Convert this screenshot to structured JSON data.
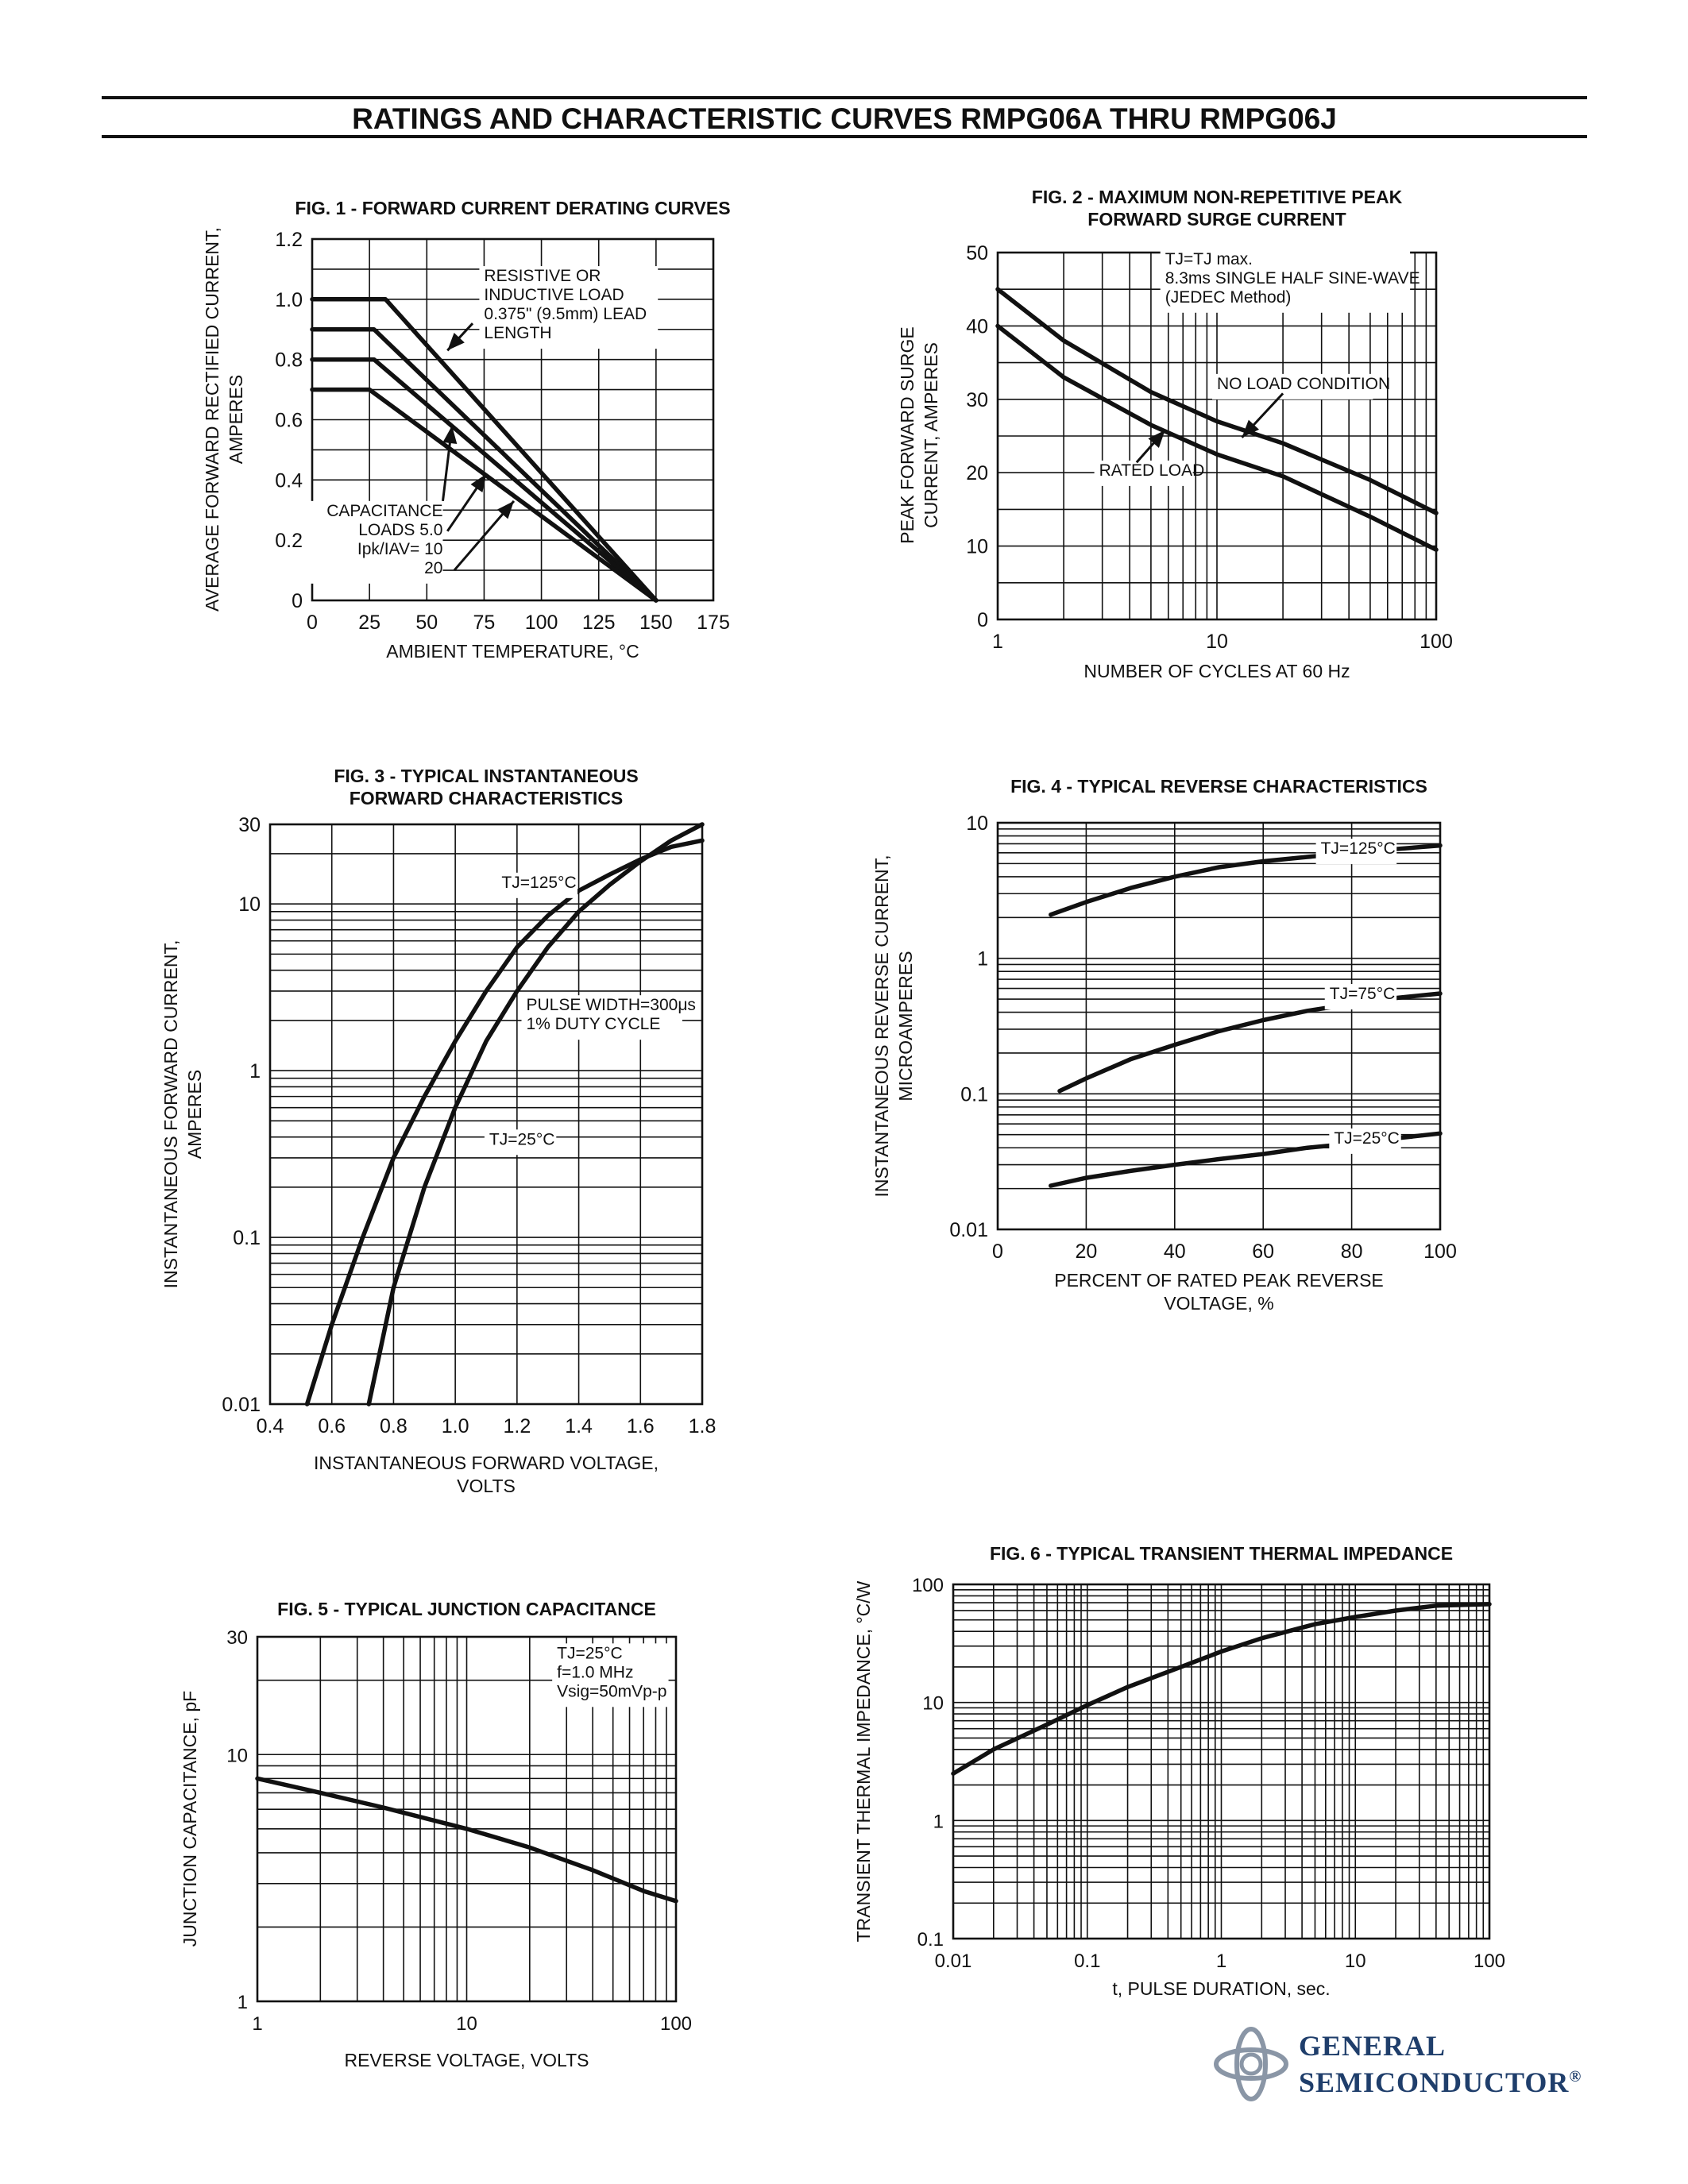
{
  "page": {
    "title": "RATINGS AND CHARACTERISTIC CURVES RMPG06A THRU RMPG06J"
  },
  "logo": {
    "line1": "GENERAL",
    "line2": "SEMICONDUCTOR",
    "mark": "®",
    "color": "#1f3e6b"
  },
  "chart_data": [
    {
      "id": "fig1",
      "type": "line",
      "title": "FIG. 1 - FORWARD CURRENT DERATING CURVES",
      "xlabel": "AMBIENT TEMPERATURE, °C",
      "ylabel": [
        "AVERAGE FORWARD RECTIFIED CURRENT,",
        "AMPERES"
      ],
      "xscale": "linear",
      "yscale": "linear",
      "xlim": [
        0,
        175
      ],
      "ylim": [
        0,
        1.2
      ],
      "xticks": [
        0,
        25,
        50,
        75,
        100,
        125,
        150,
        175
      ],
      "xtick_labels": [
        "0",
        "25",
        "50",
        "75",
        "100",
        "125",
        "150",
        "175"
      ],
      "yticks": [
        0,
        0.2,
        0.4,
        0.6,
        0.8,
        1.0,
        1.2
      ],
      "ytick_labels": [
        "0",
        "0.2",
        "0.4",
        "0.6",
        "0.8",
        "1.0",
        "1.2"
      ],
      "grid": true,
      "series": [
        {
          "points": [
            [
              0,
              1.0
            ],
            [
              32,
              1.0
            ],
            [
              150,
              0
            ]
          ]
        },
        {
          "points": [
            [
              0,
              0.9
            ],
            [
              27,
              0.9
            ],
            [
              150,
              0
            ]
          ]
        },
        {
          "points": [
            [
              0,
              0.8
            ],
            [
              27,
              0.8
            ],
            [
              150,
              0
            ]
          ]
        },
        {
          "points": [
            [
              0,
              0.7
            ],
            [
              25,
              0.7
            ],
            [
              150,
              0
            ]
          ]
        }
      ],
      "annotations": [
        {
          "lines": [
            "RESISTIVE OR",
            "INDUCTIVE LOAD",
            "0.375\" (9.5mm) LEAD",
            "LENGTH"
          ],
          "x": 75,
          "y": 1.06,
          "anchor": "start",
          "box": false
        },
        {
          "lines": [
            "CAPACITANCE",
            "LOADS      5.0",
            "Ipk/IAV=  10",
            "20"
          ],
          "x": 57,
          "y": 0.28,
          "anchor": "end",
          "box": true
        }
      ],
      "arrows": [
        {
          "from": [
            70,
            0.92
          ],
          "to": [
            59,
            0.83
          ]
        },
        {
          "from": [
            57,
            0.33
          ],
          "to": [
            61,
            0.58
          ]
        },
        {
          "from": [
            59,
            0.23
          ],
          "to": [
            76,
            0.42
          ]
        },
        {
          "from": [
            62,
            0.1
          ],
          "to": [
            88,
            0.33
          ]
        }
      ]
    },
    {
      "id": "fig2",
      "type": "line",
      "title": [
        "FIG. 2 - MAXIMUM NON-REPETITIVE PEAK",
        "FORWARD SURGE CURRENT"
      ],
      "xlabel": "NUMBER OF CYCLES AT 60 Hz",
      "ylabel": [
        "PEAK FORWARD SURGE",
        "CURRENT, AMPERES"
      ],
      "xscale": "log",
      "yscale": "linear",
      "xlim": [
        1,
        100
      ],
      "ylim": [
        0,
        50
      ],
      "xticks": [
        1,
        10,
        100
      ],
      "xtick_labels": [
        "1",
        "10",
        "100"
      ],
      "yticks": [
        0,
        10,
        20,
        30,
        40,
        50
      ],
      "ytick_labels": [
        "0",
        "10",
        "20",
        "30",
        "40",
        "50"
      ],
      "grid": true,
      "series": [
        {
          "name": "NO LOAD CONDITION",
          "points": [
            [
              1,
              45
            ],
            [
              2,
              38
            ],
            [
              5,
              31
            ],
            [
              10,
              27
            ],
            [
              20,
              24
            ],
            [
              50,
              19
            ],
            [
              100,
              14.5
            ]
          ]
        },
        {
          "name": "RATED LOAD",
          "points": [
            [
              1,
              40
            ],
            [
              2,
              33
            ],
            [
              5,
              26.5
            ],
            [
              10,
              22.5
            ],
            [
              20,
              19.5
            ],
            [
              50,
              14
            ],
            [
              100,
              9.5
            ]
          ]
        }
      ],
      "annotations": [
        {
          "lines": [
            "TJ=TJ max.",
            "8.3ms SINGLE HALF SINE-WAVE",
            "(JEDEC Method)"
          ],
          "x": 5.8,
          "y": 48.4,
          "anchor": "start",
          "box": true
        },
        {
          "lines": [
            "NO LOAD CONDITION"
          ],
          "x": 10,
          "y": 31.4,
          "anchor": "start",
          "box": true
        },
        {
          "lines": [
            "RATED LOAD"
          ],
          "x": 2.9,
          "y": 19.6,
          "anchor": "start",
          "box": true
        }
      ],
      "arrows": [
        {
          "from": [
            20,
            30.8
          ],
          "to": [
            13,
            24.8
          ]
        },
        {
          "from": [
            4.3,
            21.4
          ],
          "to": [
            5.8,
            25.8
          ]
        }
      ]
    },
    {
      "id": "fig3",
      "type": "line",
      "title": [
        "FIG. 3 - TYPICAL INSTANTANEOUS",
        "FORWARD CHARACTERISTICS"
      ],
      "xlabel": [
        "INSTANTANEOUS FORWARD VOLTAGE,",
        "VOLTS"
      ],
      "ylabel": [
        "INSTANTANEOUS FORWARD CURRENT,",
        "AMPERES"
      ],
      "xscale": "linear",
      "yscale": "log",
      "xlim": [
        0.4,
        1.8
      ],
      "ylim": [
        0.01,
        30
      ],
      "xticks": [
        0.4,
        0.6,
        0.8,
        1.0,
        1.2,
        1.4,
        1.6,
        1.8
      ],
      "xtick_labels": [
        "0.4",
        "0.6",
        "0.8",
        "1.0",
        "1.2",
        "1.4",
        "1.6",
        "1.8"
      ],
      "yticks": [
        0.01,
        0.1,
        1,
        10,
        30
      ],
      "ytick_labels": [
        "0.01",
        "0.1",
        "1",
        "10",
        "30"
      ],
      "grid": true,
      "series": [
        {
          "name": "TJ=125°C",
          "points": [
            [
              0.52,
              0.01
            ],
            [
              0.6,
              0.03
            ],
            [
              0.7,
              0.1
            ],
            [
              0.8,
              0.3
            ],
            [
              0.9,
              0.7
            ],
            [
              1.0,
              1.5
            ],
            [
              1.1,
              3
            ],
            [
              1.2,
              5.5
            ],
            [
              1.3,
              8.5
            ],
            [
              1.4,
              12
            ],
            [
              1.5,
              15
            ],
            [
              1.6,
              18.5
            ],
            [
              1.7,
              22
            ],
            [
              1.8,
              24
            ]
          ]
        },
        {
          "name": "TJ=25°C",
          "points": [
            [
              0.72,
              0.01
            ],
            [
              0.8,
              0.05
            ],
            [
              0.9,
              0.2
            ],
            [
              1.0,
              0.6
            ],
            [
              1.1,
              1.5
            ],
            [
              1.2,
              3
            ],
            [
              1.3,
              5.5
            ],
            [
              1.4,
              9
            ],
            [
              1.5,
              13
            ],
            [
              1.6,
              18
            ],
            [
              1.7,
              24
            ],
            [
              1.8,
              30
            ]
          ]
        }
      ],
      "annotations": [
        {
          "lines": [
            "TJ=125°C"
          ],
          "x": 1.15,
          "y": 12.5,
          "anchor": "start",
          "box": true
        },
        {
          "lines": [
            "PULSE WIDTH=300μs",
            "1% DUTY CYCLE"
          ],
          "x": 1.23,
          "y": 2.3,
          "anchor": "start",
          "box": true
        },
        {
          "lines": [
            "TJ=25°C"
          ],
          "x": 1.11,
          "y": 0.36,
          "anchor": "start",
          "box": true
        }
      ],
      "arrows": []
    },
    {
      "id": "fig4",
      "type": "line",
      "title": "FIG. 4 - TYPICAL REVERSE CHARACTERISTICS",
      "xlabel": [
        "PERCENT OF RATED PEAK REVERSE",
        "VOLTAGE, %"
      ],
      "ylabel": [
        "INSTANTANEOUS REVERSE CURRENT,",
        "MICROAMPERES"
      ],
      "xscale": "linear",
      "yscale": "log",
      "xlim": [
        0,
        100
      ],
      "ylim": [
        0.01,
        10
      ],
      "xticks": [
        0,
        20,
        40,
        60,
        80,
        100
      ],
      "xtick_labels": [
        "0",
        "20",
        "40",
        "60",
        "80",
        "100"
      ],
      "yticks": [
        0.01,
        0.1,
        1,
        10
      ],
      "ytick_labels": [
        "0.01",
        "0.1",
        "1",
        "10"
      ],
      "grid": true,
      "series": [
        {
          "name": "TJ=125°C",
          "points": [
            [
              12,
              2.1
            ],
            [
              20,
              2.6
            ],
            [
              30,
              3.3
            ],
            [
              40,
              4.0
            ],
            [
              50,
              4.7
            ],
            [
              60,
              5.2
            ],
            [
              70,
              5.6
            ],
            [
              80,
              6.0
            ],
            [
              90,
              6.4
            ],
            [
              100,
              6.8
            ]
          ]
        },
        {
          "name": "TJ=75°C",
          "points": [
            [
              14,
              0.105
            ],
            [
              20,
              0.13
            ],
            [
              30,
              0.18
            ],
            [
              40,
              0.23
            ],
            [
              50,
              0.29
            ],
            [
              60,
              0.35
            ],
            [
              70,
              0.41
            ],
            [
              80,
              0.46
            ],
            [
              90,
              0.51
            ],
            [
              100,
              0.55
            ]
          ]
        },
        {
          "name": "TJ=25°C",
          "points": [
            [
              12,
              0.021
            ],
            [
              20,
              0.024
            ],
            [
              30,
              0.027
            ],
            [
              40,
              0.03
            ],
            [
              50,
              0.033
            ],
            [
              60,
              0.036
            ],
            [
              70,
              0.04
            ],
            [
              80,
              0.043
            ],
            [
              90,
              0.047
            ],
            [
              100,
              0.051
            ]
          ]
        }
      ],
      "annotations": [
        {
          "lines": [
            "TJ=125°C"
          ],
          "x": 73,
          "y": 5.9,
          "anchor": "start",
          "box": true
        },
        {
          "lines": [
            "TJ=75°C"
          ],
          "x": 75,
          "y": 0.5,
          "anchor": "start",
          "box": true
        },
        {
          "lines": [
            "TJ=25°C"
          ],
          "x": 76,
          "y": 0.043,
          "anchor": "start",
          "box": true
        }
      ],
      "arrows": []
    },
    {
      "id": "fig5",
      "type": "line",
      "title": "FIG. 5 - TYPICAL JUNCTION CAPACITANCE",
      "xlabel": "REVERSE VOLTAGE, VOLTS",
      "ylabel": [
        "JUNCTION CAPACITANCE, pF"
      ],
      "xscale": "log",
      "yscale": "log",
      "xlim": [
        1,
        100
      ],
      "ylim": [
        1,
        30
      ],
      "xticks": [
        1,
        10,
        100
      ],
      "xtick_labels": [
        "1",
        "10",
        "100"
      ],
      "yticks": [
        1,
        10,
        30
      ],
      "ytick_labels": [
        "1",
        "10",
        "30"
      ],
      "grid": true,
      "series": [
        {
          "points": [
            [
              1,
              8.0
            ],
            [
              2,
              7.0
            ],
            [
              4,
              6.1
            ],
            [
              10,
              5.0
            ],
            [
              20,
              4.2
            ],
            [
              40,
              3.4
            ],
            [
              70,
              2.8
            ],
            [
              100,
              2.55
            ]
          ]
        }
      ],
      "annotations": [
        {
          "lines": [
            "TJ=25°C",
            "f=1.0 MHz",
            "Vsig=50mVp-p"
          ],
          "x": 27,
          "y": 24.5,
          "anchor": "start",
          "box": true
        }
      ],
      "arrows": []
    },
    {
      "id": "fig6",
      "type": "line",
      "title": "FIG. 6 - TYPICAL TRANSIENT THERMAL IMPEDANCE",
      "xlabel": "t, PULSE DURATION, sec.",
      "ylabel": [
        "TRANSIENT THERMAL IMPEDANCE, °C/W"
      ],
      "xscale": "log",
      "yscale": "log",
      "xlim": [
        0.01,
        100
      ],
      "ylim": [
        0.1,
        100
      ],
      "xticks": [
        0.01,
        0.1,
        1,
        10,
        100
      ],
      "xtick_labels": [
        "0.01",
        "0.1",
        "1",
        "10",
        "100"
      ],
      "yticks": [
        0.1,
        1,
        10,
        100
      ],
      "ytick_labels": [
        "0.1",
        "1",
        "10",
        "100"
      ],
      "grid": true,
      "series": [
        {
          "points": [
            [
              0.01,
              2.5
            ],
            [
              0.02,
              4
            ],
            [
              0.05,
              6.5
            ],
            [
              0.1,
              9.5
            ],
            [
              0.2,
              13.5
            ],
            [
              0.5,
              20
            ],
            [
              1,
              27
            ],
            [
              2,
              35
            ],
            [
              5,
              46
            ],
            [
              10,
              53
            ],
            [
              20,
              60
            ],
            [
              40,
              66
            ],
            [
              100,
              68
            ]
          ]
        }
      ],
      "annotations": [],
      "arrows": []
    }
  ]
}
